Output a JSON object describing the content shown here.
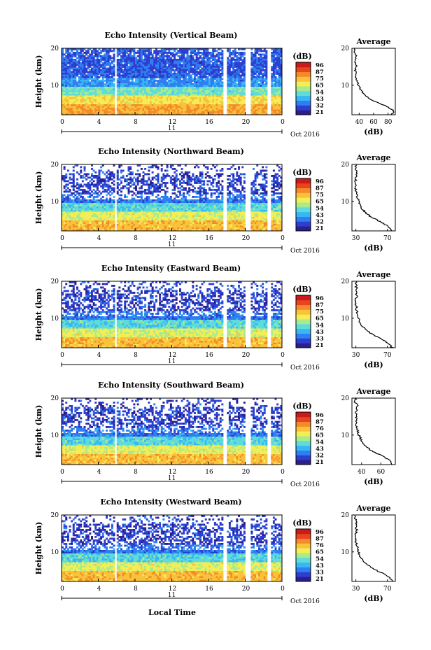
{
  "figure": {
    "x_axis_label": "Local Time",
    "date_label": "Oct 2016",
    "day_label": "11",
    "height_label": "Height (km)",
    "db_label": "(dB)",
    "avg_title": "Average"
  },
  "colors": {
    "scale": [
      "#2b1f8f",
      "#2d3fd1",
      "#2f7ff0",
      "#37b7f5",
      "#5fdbd9",
      "#a8eb8d",
      "#f4ee56",
      "#f8c23a",
      "#f58a2a",
      "#e8451e",
      "#cc1a1a"
    ],
    "gap": "#ffffff",
    "line": "#000000"
  },
  "chart_data": [
    {
      "type": "heatmap",
      "title": "Echo Intensity (Vertical Beam)",
      "beam": "vertical",
      "xlabel": "Local Time",
      "ylabel": "Height (km)",
      "x_ticks": [
        "0",
        "4",
        "8",
        "12",
        "16",
        "20",
        "0"
      ],
      "xlim": [
        0,
        24
      ],
      "ylim": [
        2,
        20
      ],
      "y_ticks": [
        "10",
        "20"
      ],
      "colorbar": {
        "label": "(dB)",
        "ticks": [
          "96",
          "87",
          "75",
          "65",
          "54",
          "43",
          "32",
          "21"
        ],
        "range": [
          21,
          96
        ]
      },
      "profile": {
        "title": "Average",
        "xlabel": "(dB)",
        "x_ticks": [
          "40",
          "60",
          "80"
        ],
        "xlim": [
          30,
          90
        ],
        "y_ticks": [
          "10",
          "20"
        ],
        "height": [
          2,
          3,
          4,
          5,
          6,
          7,
          8,
          9,
          10,
          11,
          12,
          13,
          14,
          15,
          16,
          17,
          18,
          19,
          20
        ],
        "value": [
          85,
          88,
          80,
          70,
          58,
          50,
          45,
          41,
          39,
          37,
          36,
          36,
          35,
          36,
          35,
          36,
          36,
          34,
          35
        ]
      }
    },
    {
      "type": "heatmap",
      "title": "Echo Intensity (Northward Beam)",
      "beam": "northward",
      "xlabel": "Local Time",
      "ylabel": "Height (km)",
      "x_ticks": [
        "0",
        "4",
        "8",
        "12",
        "16",
        "20",
        "0"
      ],
      "xlim": [
        0,
        24
      ],
      "ylim": [
        2,
        20
      ],
      "y_ticks": [
        "10",
        "20"
      ],
      "colorbar": {
        "label": "(dB)",
        "ticks": [
          "96",
          "87",
          "75",
          "65",
          "54",
          "43",
          "32",
          "21"
        ],
        "range": [
          21,
          96
        ]
      },
      "profile": {
        "title": "Average",
        "xlabel": "(dB)",
        "x_ticks": [
          "30",
          "70"
        ],
        "xlim": [
          25,
          80
        ],
        "y_ticks": [
          "10",
          "20"
        ],
        "height": [
          2,
          3,
          4,
          5,
          6,
          7,
          8,
          9,
          10,
          11,
          12,
          13,
          14,
          15,
          16,
          17,
          18,
          19,
          20
        ],
        "value": [
          75,
          72,
          65,
          56,
          48,
          42,
          38,
          35,
          33,
          32,
          31,
          30,
          30,
          29,
          30,
          30,
          31,
          29,
          30
        ]
      }
    },
    {
      "type": "heatmap",
      "title": "Echo Intensity (Eastward Beam)",
      "beam": "eastward",
      "xlabel": "Local Time",
      "ylabel": "Height (km)",
      "x_ticks": [
        "0",
        "4",
        "8",
        "12",
        "16",
        "20",
        "0"
      ],
      "xlim": [
        0,
        24
      ],
      "ylim": [
        2,
        20
      ],
      "y_ticks": [
        "10",
        "20"
      ],
      "colorbar": {
        "label": "(dB)",
        "ticks": [
          "96",
          "87",
          "75",
          "65",
          "54",
          "43",
          "33",
          "21"
        ],
        "range": [
          21,
          96
        ]
      },
      "profile": {
        "title": "Average",
        "xlabel": "(dB)",
        "x_ticks": [
          "30",
          "70"
        ],
        "xlim": [
          25,
          80
        ],
        "y_ticks": [
          "10",
          "20"
        ],
        "height": [
          2,
          3,
          4,
          5,
          6,
          7,
          8,
          9,
          10,
          11,
          12,
          13,
          14,
          15,
          16,
          17,
          18,
          19,
          20
        ],
        "value": [
          76,
          73,
          66,
          57,
          48,
          42,
          38,
          35,
          33,
          32,
          31,
          31,
          30,
          30,
          31,
          30,
          31,
          30,
          30
        ]
      }
    },
    {
      "type": "heatmap",
      "title": "Echo Intensity (Southward Beam)",
      "beam": "southward",
      "xlabel": "Local Time",
      "ylabel": "Height (km)",
      "x_ticks": [
        "0",
        "4",
        "8",
        "12",
        "16",
        "20",
        "0"
      ],
      "xlim": [
        0,
        24
      ],
      "ylim": [
        2,
        20
      ],
      "y_ticks": [
        "10",
        "20"
      ],
      "colorbar": {
        "label": "(dB)",
        "ticks": [
          "96",
          "87",
          "76",
          "65",
          "54",
          "43",
          "32",
          "21"
        ],
        "range": [
          21,
          96
        ]
      },
      "profile": {
        "title": "Average",
        "xlabel": "(dB)",
        "x_ticks": [
          "40",
          "60"
        ],
        "xlim": [
          30,
          75
        ],
        "y_ticks": [
          "10",
          "20"
        ],
        "height": [
          2,
          3,
          4,
          5,
          6,
          7,
          8,
          9,
          10,
          11,
          12,
          13,
          14,
          15,
          16,
          17,
          18,
          19,
          20
        ],
        "value": [
          72,
          70,
          64,
          56,
          49,
          44,
          41,
          39,
          37,
          36,
          35,
          35,
          34,
          35,
          34,
          35,
          36,
          33,
          34
        ]
      }
    },
    {
      "type": "heatmap",
      "title": "Echo Intensity (Westward Beam)",
      "beam": "westward",
      "xlabel": "Local Time",
      "ylabel": "Height (km)",
      "x_ticks": [
        "0",
        "4",
        "8",
        "12",
        "16",
        "20",
        "0"
      ],
      "xlim": [
        0,
        24
      ],
      "ylim": [
        2,
        20
      ],
      "y_ticks": [
        "10",
        "20"
      ],
      "colorbar": {
        "label": "(dB)",
        "ticks": [
          "96",
          "87",
          "76",
          "65",
          "54",
          "43",
          "33",
          "21"
        ],
        "range": [
          21,
          96
        ]
      },
      "profile": {
        "title": "Average",
        "xlabel": "(dB)",
        "x_ticks": [
          "30",
          "70"
        ],
        "xlim": [
          25,
          80
        ],
        "y_ticks": [
          "10",
          "20"
        ],
        "height": [
          2,
          3,
          4,
          5,
          6,
          7,
          8,
          9,
          10,
          11,
          12,
          13,
          14,
          15,
          16,
          17,
          18,
          19,
          20
        ],
        "value": [
          76,
          73,
          66,
          56,
          48,
          42,
          38,
          35,
          33,
          32,
          31,
          30,
          30,
          30,
          31,
          30,
          31,
          29,
          30
        ]
      }
    }
  ]
}
